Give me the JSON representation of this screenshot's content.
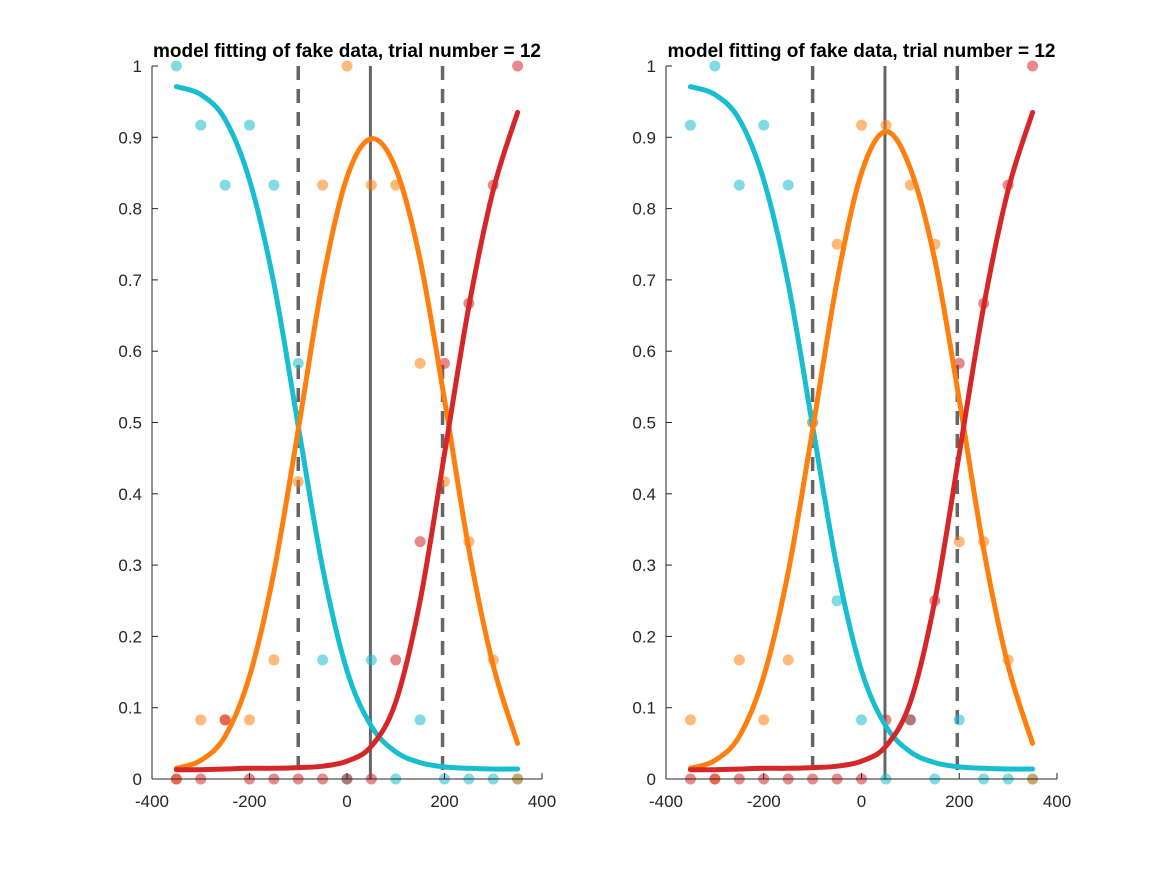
{
  "colors": {
    "cyan": "#17becf",
    "orange": "#ff7f0e",
    "red": "#d62728",
    "marker_line": "#404040",
    "axis": "#262626"
  },
  "chart_data": [
    {
      "type": "scatter",
      "title": "model fitting of fake data, trial number = 12",
      "xlabel": "",
      "ylabel": "",
      "xlim": [
        -400,
        400
      ],
      "ylim": [
        0,
        1
      ],
      "x_ticks": [
        -400,
        -200,
        0,
        200,
        400
      ],
      "x_tick_labels": [
        "-400",
        "-200",
        "0",
        "200",
        "400"
      ],
      "y_ticks": [
        0,
        0.1,
        0.2,
        0.3,
        0.4,
        0.5,
        0.6,
        0.7,
        0.8,
        0.9,
        1
      ],
      "y_tick_labels": [
        "0",
        "0.1",
        "0.2",
        "0.3",
        "0.4",
        "0.5",
        "0.6",
        "0.7",
        "0.8",
        "0.9",
        "1"
      ],
      "grid": false,
      "vertical_lines": [
        {
          "x": -100,
          "style": "dashed"
        },
        {
          "x": 48,
          "style": "solid"
        },
        {
          "x": 196,
          "style": "dashed"
        }
      ],
      "x": [
        -350,
        -300,
        -250,
        -200,
        -150,
        -100,
        -50,
        0,
        50,
        100,
        150,
        200,
        250,
        300,
        350
      ],
      "series": [
        {
          "color_key": "cyan",
          "values": [
            1.0,
            0.917,
            0.833,
            0.917,
            0.833,
            0.583,
            0.167,
            0.0,
            0.167,
            0.0,
            0.083,
            0.0,
            0.0,
            0.0,
            0.0
          ]
        },
        {
          "color_key": "orange",
          "values": [
            0.0,
            0.083,
            0.083,
            0.083,
            0.167,
            0.417,
            0.833,
            1.0,
            0.833,
            0.833,
            0.583,
            0.417,
            0.333,
            0.167,
            0.0
          ]
        },
        {
          "color_key": "red",
          "values": [
            0.0,
            0.0,
            0.083,
            0.0,
            0.0,
            0.0,
            0.0,
            0.0,
            0.0,
            0.167,
            0.333,
            0.583,
            0.667,
            0.833,
            1.0
          ]
        }
      ],
      "fitted_curves": [
        {
          "color_key": "cyan",
          "values": [
            0.971,
            0.96,
            0.925,
            0.84,
            0.695,
            0.495,
            0.296,
            0.152,
            0.074,
            0.038,
            0.023,
            0.017,
            0.015,
            0.014,
            0.014
          ]
        },
        {
          "color_key": "orange",
          "values": [
            0.015,
            0.026,
            0.06,
            0.144,
            0.29,
            0.49,
            0.698,
            0.844,
            0.898,
            0.856,
            0.728,
            0.532,
            0.322,
            0.159,
            0.05
          ]
        },
        {
          "color_key": "red",
          "values": [
            0.013,
            0.013,
            0.014,
            0.015,
            0.015,
            0.016,
            0.018,
            0.025,
            0.046,
            0.108,
            0.25,
            0.456,
            0.663,
            0.826,
            0.935
          ]
        }
      ]
    },
    {
      "type": "scatter",
      "title": "model fitting of fake data, trial number = 12",
      "xlabel": "",
      "ylabel": "",
      "xlim": [
        -400,
        400
      ],
      "ylim": [
        0,
        1
      ],
      "x_ticks": [
        -400,
        -200,
        0,
        200,
        400
      ],
      "x_tick_labels": [
        "-400",
        "-200",
        "0",
        "200",
        "400"
      ],
      "y_ticks": [
        0,
        0.1,
        0.2,
        0.3,
        0.4,
        0.5,
        0.6,
        0.7,
        0.8,
        0.9,
        1
      ],
      "y_tick_labels": [
        "0",
        "0.1",
        "0.2",
        "0.3",
        "0.4",
        "0.5",
        "0.6",
        "0.7",
        "0.8",
        "0.9",
        "1"
      ],
      "grid": false,
      "vertical_lines": [
        {
          "x": -100,
          "style": "dashed"
        },
        {
          "x": 48,
          "style": "solid"
        },
        {
          "x": 196,
          "style": "dashed"
        }
      ],
      "x": [
        -350,
        -300,
        -250,
        -200,
        -150,
        -100,
        -50,
        0,
        50,
        100,
        150,
        200,
        250,
        300,
        350
      ],
      "series": [
        {
          "color_key": "cyan",
          "values": [
            0.917,
            1.0,
            0.833,
            0.917,
            0.833,
            0.5,
            0.25,
            0.083,
            0.0,
            0.083,
            0.0,
            0.083,
            0.0,
            0.0,
            0.0
          ]
        },
        {
          "color_key": "orange",
          "values": [
            0.083,
            0.0,
            0.167,
            0.083,
            0.167,
            0.5,
            0.75,
            0.917,
            0.917,
            0.833,
            0.75,
            0.333,
            0.333,
            0.167,
            0.0
          ]
        },
        {
          "color_key": "red",
          "values": [
            0.0,
            0.0,
            0.0,
            0.0,
            0.0,
            0.0,
            0.0,
            0.0,
            0.083,
            0.083,
            0.25,
            0.583,
            0.667,
            0.833,
            1.0
          ]
        }
      ],
      "fitted_curves": [
        {
          "color_key": "cyan",
          "values": [
            0.971,
            0.96,
            0.925,
            0.84,
            0.695,
            0.495,
            0.296,
            0.152,
            0.074,
            0.038,
            0.023,
            0.017,
            0.015,
            0.014,
            0.014
          ]
        },
        {
          "color_key": "orange",
          "values": [
            0.015,
            0.026,
            0.06,
            0.144,
            0.29,
            0.49,
            0.698,
            0.85,
            0.908,
            0.856,
            0.728,
            0.532,
            0.322,
            0.159,
            0.05
          ]
        },
        {
          "color_key": "red",
          "values": [
            0.013,
            0.013,
            0.014,
            0.015,
            0.015,
            0.016,
            0.018,
            0.025,
            0.046,
            0.108,
            0.25,
            0.456,
            0.663,
            0.826,
            0.935
          ]
        }
      ]
    }
  ]
}
